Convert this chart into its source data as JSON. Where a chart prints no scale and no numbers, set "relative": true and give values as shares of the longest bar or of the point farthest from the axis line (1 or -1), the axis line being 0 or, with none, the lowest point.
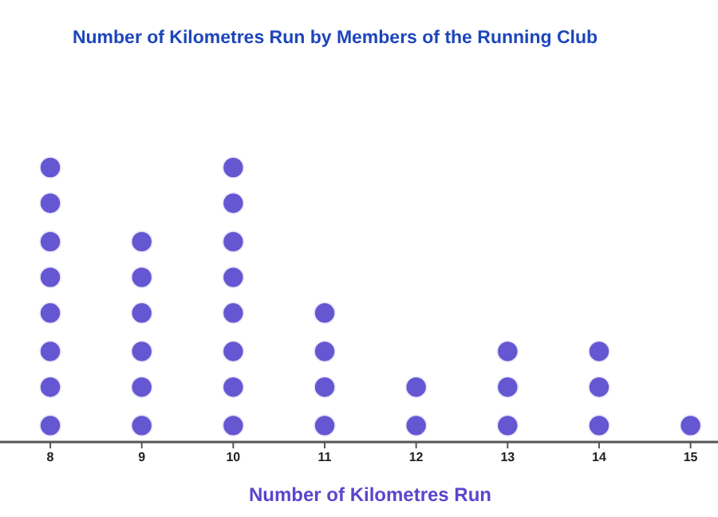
{
  "chart_data": {
    "type": "scatter",
    "title": "Number of Kilometres Run by Members of the Running Club",
    "xlabel": "Number of Kilometres Run",
    "relative": true,
    "marker": "circle",
    "grid": false,
    "xlim": [
      7.45,
      15.3
    ],
    "xticks": [
      8,
      9,
      10,
      11,
      12,
      13,
      14,
      15
    ],
    "series": [
      {
        "color": "#6556d2",
        "x": [
          8,
          8,
          8,
          8,
          8,
          8,
          8,
          8,
          9,
          9,
          9,
          9,
          9,
          9,
          10,
          10,
          10,
          10,
          10,
          10,
          10,
          10,
          11,
          11,
          11,
          11,
          12,
          12,
          13,
          13,
          13,
          14,
          14,
          14,
          15
        ],
        "values": [
          0.06,
          0.2,
          0.33,
          0.47,
          0.6,
          0.73,
          0.87,
          1,
          0.06,
          0.2,
          0.33,
          0.47,
          0.6,
          0.73,
          0.06,
          0.2,
          0.33,
          0.47,
          0.6,
          0.73,
          0.87,
          1,
          0.06,
          0.2,
          0.33,
          0.47,
          0.06,
          0.2,
          0.06,
          0.2,
          0.33,
          0.06,
          0.2,
          0.33,
          0.06
        ]
      }
    ]
  }
}
